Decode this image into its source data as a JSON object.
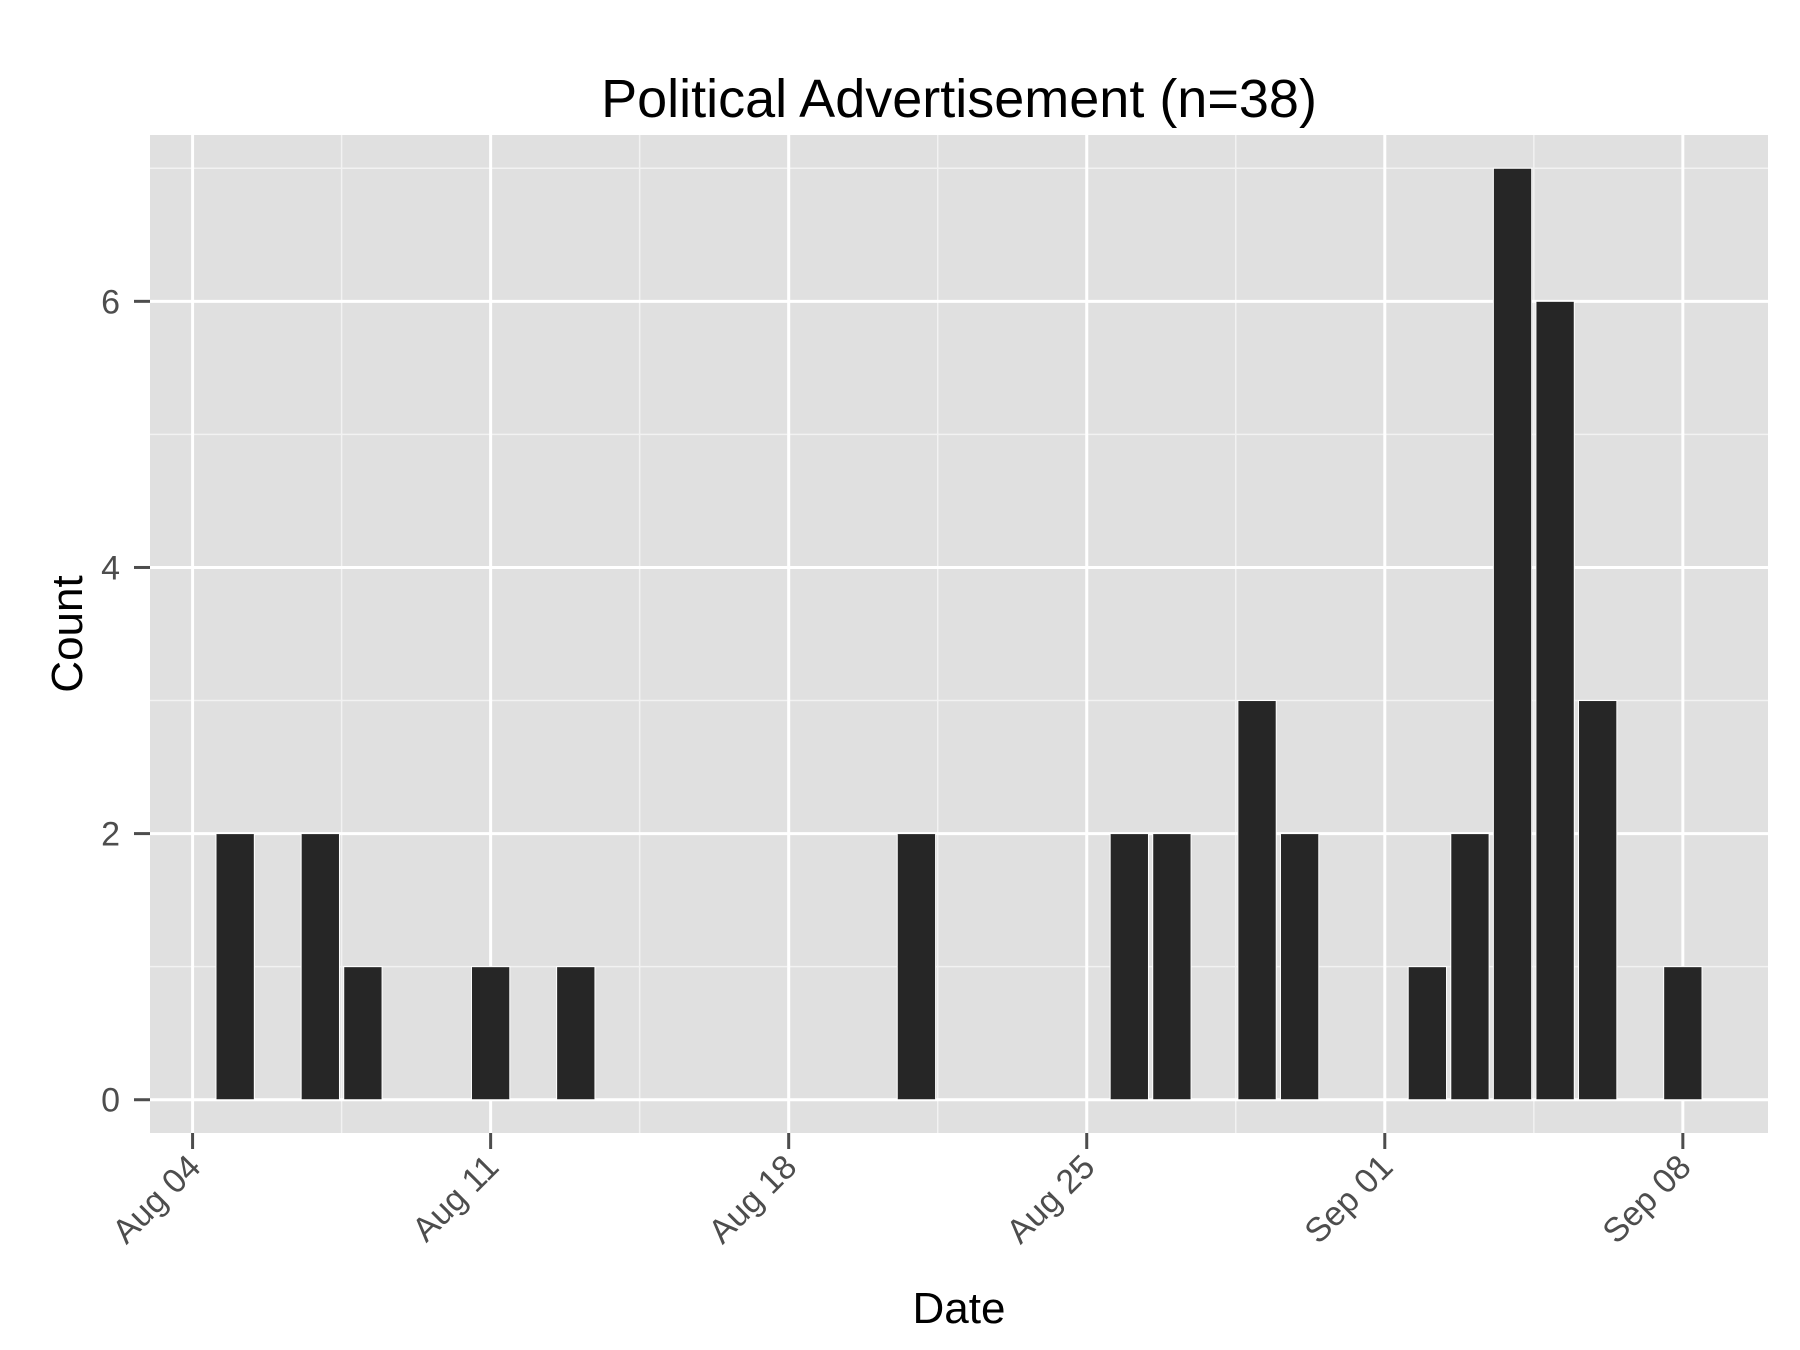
{
  "chart_data": {
    "type": "bar",
    "title": "Political Advertisement (n=38)",
    "xlabel": "Date",
    "ylabel": "Count",
    "x_range": [
      "2014-08-03",
      "2014-09-10"
    ],
    "ylim": [
      -0.25,
      7.25
    ],
    "y_ticks": [
      0,
      2,
      4,
      6
    ],
    "x_ticks": [
      {
        "date": "2014-08-04",
        "label": "Aug 04"
      },
      {
        "date": "2014-08-11",
        "label": "Aug 11"
      },
      {
        "date": "2014-08-18",
        "label": "Aug 18"
      },
      {
        "date": "2014-08-25",
        "label": "Aug 25"
      },
      {
        "date": "2014-09-01",
        "label": "Sep 01"
      },
      {
        "date": "2014-09-08",
        "label": "Sep 08"
      }
    ],
    "grid": true,
    "bar_color": "#262626",
    "panel_color": "#e0e0e0",
    "bars": [
      {
        "date": "2014-08-05",
        "value": 2
      },
      {
        "date": "2014-08-07",
        "value": 2
      },
      {
        "date": "2014-08-08",
        "value": 1
      },
      {
        "date": "2014-08-11",
        "value": 1
      },
      {
        "date": "2014-08-13",
        "value": 1
      },
      {
        "date": "2014-08-21",
        "value": 2
      },
      {
        "date": "2014-08-26",
        "value": 2
      },
      {
        "date": "2014-08-27",
        "value": 2
      },
      {
        "date": "2014-08-29",
        "value": 3
      },
      {
        "date": "2014-08-30",
        "value": 2
      },
      {
        "date": "2014-09-02",
        "value": 1
      },
      {
        "date": "2014-09-03",
        "value": 2
      },
      {
        "date": "2014-09-04",
        "value": 7
      },
      {
        "date": "2014-09-05",
        "value": 6
      },
      {
        "date": "2014-09-06",
        "value": 3
      },
      {
        "date": "2014-09-08",
        "value": 1
      }
    ]
  }
}
